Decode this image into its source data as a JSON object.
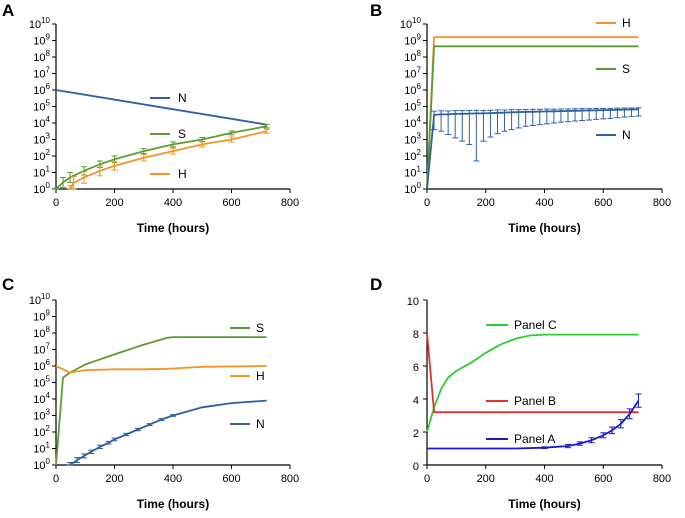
{
  "colors": {
    "blue": "#2e5fa3",
    "green": "#5c9c32",
    "orange": "#f39427",
    "bright_green": "#2ecc2e",
    "red": "#e53030",
    "dark_blue": "#1a1acc"
  },
  "chart_data": [
    {
      "panel": "A",
      "type": "line",
      "xlabel": "Time (hours)",
      "xlim": [
        0,
        800
      ],
      "x_ticks": [
        "0",
        "200",
        "400",
        "600",
        "800"
      ],
      "y_scale": "log10",
      "ylim_exp": [
        0,
        10
      ],
      "y_tick_base": "10",
      "y_tick_exps": [
        "0",
        "1",
        "2",
        "3",
        "4",
        "5",
        "6",
        "7",
        "8",
        "9",
        "10"
      ],
      "series": [
        {
          "name": "N",
          "color": "#2e5fa3",
          "x": [
            0,
            720
          ],
          "log_y": [
            6.0,
            3.9
          ]
        },
        {
          "name": "S",
          "color": "#5c9c32",
          "x": [
            0,
            24,
            48,
            96,
            150,
            200,
            300,
            400,
            500,
            600,
            720
          ],
          "log_y": [
            0.0,
            0.4,
            0.7,
            1.1,
            1.5,
            1.8,
            2.3,
            2.7,
            3.0,
            3.4,
            3.8
          ],
          "log_err": [
            0.05,
            0.3,
            0.3,
            0.25,
            0.2,
            0.2,
            0.15,
            0.15,
            0.12,
            0.12,
            0.1
          ],
          "error_bars": true
        },
        {
          "name": "H",
          "color": "#f39427",
          "x": [
            48,
            60,
            96,
            150,
            200,
            300,
            400,
            500,
            600,
            720
          ],
          "log_y": [
            0.0,
            0.35,
            0.7,
            1.1,
            1.4,
            1.9,
            2.3,
            2.7,
            3.0,
            3.5
          ],
          "log_err": [
            0.2,
            0.4,
            0.35,
            0.3,
            0.25,
            0.2,
            0.18,
            0.15,
            0.15,
            0.12
          ],
          "error_bars": true
        }
      ]
    },
    {
      "panel": "B",
      "type": "line",
      "xlabel": "Time (hours)",
      "xlim": [
        0,
        800
      ],
      "x_ticks": [
        "0",
        "200",
        "400",
        "600",
        "800"
      ],
      "y_scale": "log10",
      "ylim_exp": [
        0,
        10
      ],
      "y_tick_base": "10",
      "y_tick_exps": [
        "0",
        "1",
        "2",
        "3",
        "4",
        "5",
        "6",
        "7",
        "8",
        "9",
        "10"
      ],
      "series": [
        {
          "name": "H",
          "color": "#f39427",
          "x": [
            0,
            24,
            720
          ],
          "log_y": [
            0.0,
            9.2,
            9.2
          ]
        },
        {
          "name": "S",
          "color": "#5c9c32",
          "x": [
            0,
            24,
            720
          ],
          "log_y": [
            0.0,
            8.65,
            8.65
          ]
        },
        {
          "name": "N",
          "color": "#2e5fa3",
          "x": [
            0,
            24,
            48,
            72,
            96,
            120,
            144,
            168,
            192,
            216,
            240,
            264,
            288,
            312,
            336,
            360,
            384,
            408,
            432,
            456,
            480,
            504,
            528,
            552,
            576,
            600,
            624,
            648,
            672,
            696,
            720
          ],
          "log_y": [
            0.0,
            4.5,
            4.52,
            4.53,
            4.55,
            4.56,
            4.57,
            4.58,
            4.58,
            4.6,
            4.62,
            4.63,
            4.65,
            4.66,
            4.67,
            4.68,
            4.69,
            4.7,
            4.71,
            4.72,
            4.73,
            4.74,
            4.75,
            4.76,
            4.77,
            4.78,
            4.79,
            4.8,
            4.81,
            4.82,
            4.83
          ],
          "log_err_up": [
            0.0,
            0.22,
            0.22,
            0.2,
            0.2,
            0.2,
            0.19,
            0.19,
            0.18,
            0.17,
            0.17,
            0.16,
            0.16,
            0.15,
            0.15,
            0.15,
            0.14,
            0.14,
            0.13,
            0.13,
            0.12,
            0.12,
            0.12,
            0.11,
            0.11,
            0.1,
            0.1,
            0.1,
            0.1,
            0.09,
            0.09
          ],
          "log_y_low": [
            0.0,
            3.6,
            3.5,
            3.3,
            3.1,
            2.9,
            2.7,
            1.7,
            2.9,
            3.15,
            3.35,
            3.5,
            3.6,
            3.7,
            3.8,
            3.85,
            3.9,
            3.95,
            4.0,
            4.05,
            4.08,
            4.12,
            4.15,
            4.18,
            4.22,
            4.25,
            4.28,
            4.32,
            4.36,
            4.4,
            4.42
          ],
          "error_bars": true
        }
      ]
    },
    {
      "panel": "C",
      "type": "line",
      "xlabel": "Time (hours)",
      "xlim": [
        0,
        800
      ],
      "x_ticks": [
        "0",
        "200",
        "400",
        "600",
        "800"
      ],
      "y_scale": "log10",
      "ylim_exp": [
        0,
        10
      ],
      "y_tick_base": "10",
      "y_tick_exps": [
        "0",
        "1",
        "2",
        "3",
        "4",
        "5",
        "6",
        "7",
        "8",
        "9",
        "10"
      ],
      "series": [
        {
          "name": "S",
          "color": "#5c9c32",
          "x": [
            0,
            24,
            48,
            100,
            200,
            300,
            380,
            400,
            500,
            720
          ],
          "log_y": [
            0.0,
            5.3,
            5.6,
            6.1,
            6.7,
            7.3,
            7.7,
            7.75,
            7.75,
            7.75
          ]
        },
        {
          "name": "H",
          "color": "#f39427",
          "x": [
            0,
            24,
            48,
            100,
            200,
            300,
            380,
            400,
            500,
            720
          ],
          "log_y": [
            6.0,
            5.8,
            5.6,
            5.75,
            5.8,
            5.8,
            5.83,
            5.85,
            5.95,
            6.0
          ]
        },
        {
          "name": "N",
          "color": "#2e5fa3",
          "x": [
            48,
            72,
            96,
            120,
            150,
            180,
            200,
            240,
            280,
            320,
            360,
            400,
            500,
            600,
            720
          ],
          "log_y": [
            0.0,
            0.3,
            0.55,
            0.8,
            1.1,
            1.35,
            1.55,
            1.85,
            2.15,
            2.45,
            2.75,
            3.0,
            3.5,
            3.75,
            3.9
          ],
          "log_err": [
            0.15,
            0.15,
            0.12,
            0.1,
            0.1,
            0.08,
            0.08,
            0.07,
            0.07,
            0.06,
            0.06,
            0.05,
            0.0,
            0.0,
            0.0
          ],
          "error_bars": true
        }
      ]
    },
    {
      "panel": "D",
      "type": "line",
      "xlabel": "Time (hours)",
      "xlim": [
        0,
        800
      ],
      "x_ticks": [
        "0",
        "200",
        "400",
        "600",
        "800"
      ],
      "y_scale": "linear",
      "ylim": [
        0,
        10
      ],
      "y_ticks": [
        "0",
        "2",
        "4",
        "6",
        "8",
        "10"
      ],
      "series": [
        {
          "name": "Panel C",
          "color": "#2ecc2e",
          "x": [
            0,
            24,
            48,
            72,
            100,
            150,
            200,
            250,
            300,
            350,
            400,
            450,
            500,
            600,
            720
          ],
          "y": [
            2.0,
            3.5,
            4.6,
            5.3,
            5.7,
            6.2,
            6.8,
            7.3,
            7.65,
            7.85,
            7.9,
            7.9,
            7.9,
            7.9,
            7.9
          ]
        },
        {
          "name": "Panel B",
          "color": "#e53030",
          "x": [
            0,
            24,
            720
          ],
          "y": [
            8.0,
            3.2,
            3.2
          ]
        },
        {
          "name": "Panel A",
          "color": "#1a1acc",
          "x": [
            0,
            100,
            200,
            300,
            400,
            480,
            520,
            560,
            600,
            630,
            660,
            690,
            720
          ],
          "y": [
            1.0,
            1.0,
            1.0,
            1.0,
            1.05,
            1.15,
            1.3,
            1.5,
            1.8,
            2.1,
            2.5,
            3.1,
            3.9
          ],
          "err": [
            0.0,
            0.0,
            0.0,
            0.0,
            0.05,
            0.1,
            0.1,
            0.15,
            0.15,
            0.2,
            0.25,
            0.3,
            0.4
          ],
          "error_bars": true
        }
      ]
    }
  ]
}
